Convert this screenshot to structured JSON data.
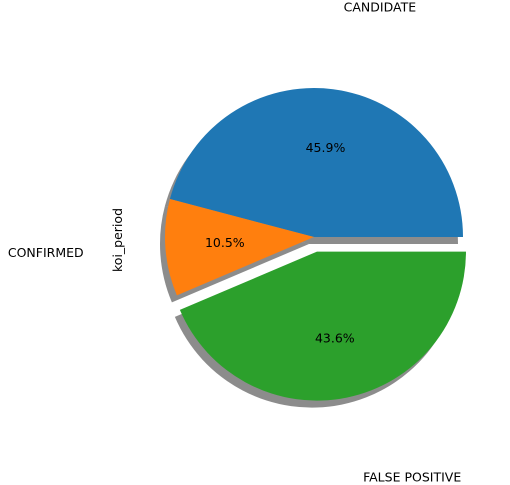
{
  "chart_data": {
    "type": "pie",
    "ylabel": "koi_period",
    "slices": [
      {
        "label": "CANDIDATE",
        "value": 45.9,
        "pct_text": "45.9%",
        "color": "#1f77b4",
        "exploded": false
      },
      {
        "label": "CONFIRMED",
        "value": 10.5,
        "pct_text": "10.5%",
        "color": "#ff7f0e",
        "exploded": false
      },
      {
        "label": "FALSE POSITIVE",
        "value": 43.6,
        "pct_text": "43.6%",
        "color": "#2ca02c",
        "exploded": true
      }
    ],
    "shadow": true,
    "start_angle_deg": 0,
    "direction": "counterclockwise"
  }
}
